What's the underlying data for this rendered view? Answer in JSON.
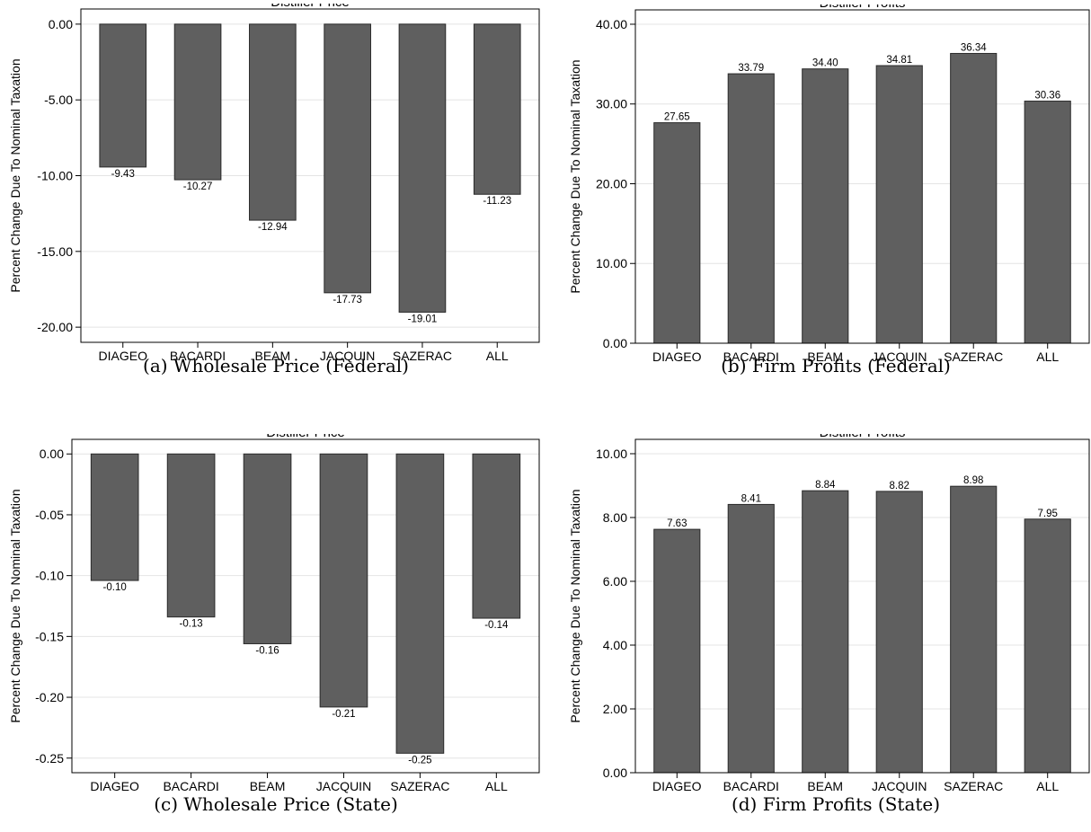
{
  "chart_data": [
    {
      "type": "bar",
      "title": "Distiller Price",
      "caption": "(a)  Wholesale Price (Federal)",
      "ylabel": "Percent Change Due To Nominal Taxation",
      "categories": [
        "DIAGEO",
        "BACARDI",
        "BEAM",
        "JACQUIN",
        "SAZERAC",
        "ALL"
      ],
      "values": [
        -9.43,
        -10.27,
        -12.94,
        -17.73,
        -19.01,
        -11.23
      ],
      "value_labels": [
        "-9.43",
        "-10.27",
        "-12.94",
        "-17.73",
        "-19.01",
        "-11.23"
      ],
      "yticks": [
        "0.00",
        "-5.00",
        "-10.00",
        "-15.00",
        "-20.00"
      ],
      "ylim": [
        -21.0,
        1.0
      ],
      "grid": true,
      "bar_color": "#5f5f5f"
    },
    {
      "type": "bar",
      "title": "Distiller Profits",
      "caption": "(b)  Firm Profits (Federal)",
      "ylabel": "Percent Change Due To Nominal Taxation",
      "categories": [
        "DIAGEO",
        "BACARDI",
        "BEAM",
        "JACQUIN",
        "SAZERAC",
        "ALL"
      ],
      "values": [
        27.65,
        33.79,
        34.4,
        34.81,
        36.34,
        30.36
      ],
      "value_labels": [
        "27.65",
        "33.79",
        "34.40",
        "34.81",
        "36.34",
        "30.36"
      ],
      "yticks": [
        "0.00",
        "10.00",
        "20.00",
        "30.00",
        "40.00"
      ],
      "ylim": [
        0,
        41.8
      ],
      "grid": true,
      "bar_color": "#5f5f5f"
    },
    {
      "type": "bar",
      "title": "Distiller Price",
      "caption": "(c)  Wholesale Price (State)",
      "ylabel": "Percent Change Due To Nominal Taxation",
      "categories": [
        "DIAGEO",
        "BACARDI",
        "BEAM",
        "JACQUIN",
        "SAZERAC",
        "ALL"
      ],
      "values": [
        -0.104,
        -0.134,
        -0.156,
        -0.208,
        -0.246,
        -0.135
      ],
      "value_labels": [
        "-0.10",
        "-0.13",
        "-0.16",
        "-0.21",
        "-0.25",
        "-0.14"
      ],
      "yticks": [
        "0.00",
        "-0.05",
        "-0.10",
        "-0.15",
        "-0.20",
        "-0.25"
      ],
      "ylim": [
        -0.262,
        0.012
      ],
      "grid": true,
      "bar_color": "#5f5f5f"
    },
    {
      "type": "bar",
      "title": "Distiller Profits",
      "caption": "(d)  Firm Profits (State)",
      "ylabel": "Percent Change Due To Nominal Taxation",
      "categories": [
        "DIAGEO",
        "BACARDI",
        "BEAM",
        "JACQUIN",
        "SAZERAC",
        "ALL"
      ],
      "values": [
        7.63,
        8.41,
        8.84,
        8.82,
        8.98,
        7.95
      ],
      "value_labels": [
        "7.63",
        "8.41",
        "8.84",
        "8.82",
        "8.98",
        "7.95"
      ],
      "yticks": [
        "0.00",
        "2.00",
        "4.00",
        "6.00",
        "8.00",
        "10.00"
      ],
      "ylim": [
        0,
        10.45
      ],
      "grid": true,
      "bar_color": "#5f5f5f"
    }
  ]
}
